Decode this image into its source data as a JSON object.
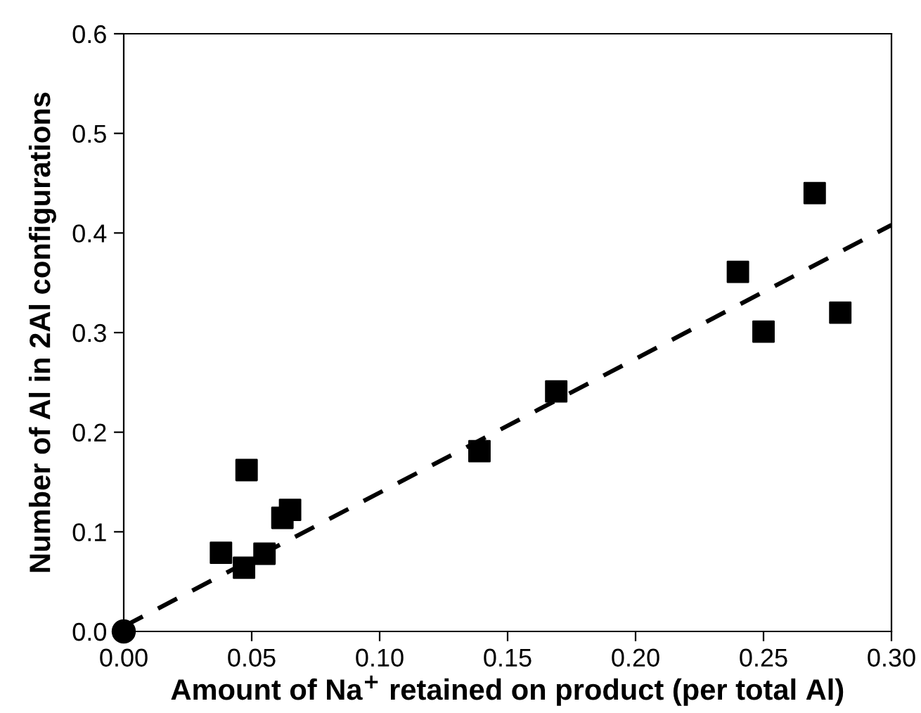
{
  "chart_data": {
    "type": "scatter",
    "xlabel": "Amount of Na$^{+}$ retained on product (per total Al)",
    "ylabel": "Number of Al in 2Al configurations",
    "xlim": [
      0,
      0.3
    ],
    "ylim": [
      0,
      0.6
    ],
    "xticks": [
      {
        "value": 0,
        "label": "0.00"
      },
      {
        "value": 0.05,
        "label": "0.05"
      },
      {
        "value": 0.1,
        "label": "0.10"
      },
      {
        "value": 0.15,
        "label": "0.15"
      },
      {
        "value": 0.2,
        "label": "0.20"
      },
      {
        "value": 0.25,
        "label": "0.25"
      },
      {
        "value": 0.3,
        "label": "0.30"
      }
    ],
    "yticks": [
      {
        "value": 0,
        "label": "0.0"
      },
      {
        "value": 0.1,
        "label": "0.1"
      },
      {
        "value": 0.2,
        "label": "0.2"
      },
      {
        "value": 0.3,
        "label": "0.3"
      },
      {
        "value": 0.4,
        "label": "0.4"
      },
      {
        "value": 0.5,
        "label": "0.5"
      },
      {
        "value": 0.6,
        "label": "0.6"
      }
    ],
    "grid": false,
    "series": [
      {
        "type": "line",
        "color": "#000000",
        "line_style": "dashed",
        "marker": "none",
        "x": [
          0,
          0.3
        ],
        "values": [
          0.005,
          0.408
        ]
      },
      {
        "color": "#000000",
        "marker": "square",
        "x": [
          0.038,
          0.048,
          0.047,
          0.055,
          0.062,
          0.065,
          0.139,
          0.169,
          0.24,
          0.25,
          0.27,
          0.28
        ],
        "values": [
          0.079,
          0.162,
          0.064,
          0.078,
          0.114,
          0.122,
          0.181,
          0.241,
          0.361,
          0.301,
          0.44,
          0.32
        ]
      },
      {
        "color": "#000000",
        "marker": "circle",
        "x": [
          0
        ],
        "values": [
          0
        ]
      }
    ]
  }
}
